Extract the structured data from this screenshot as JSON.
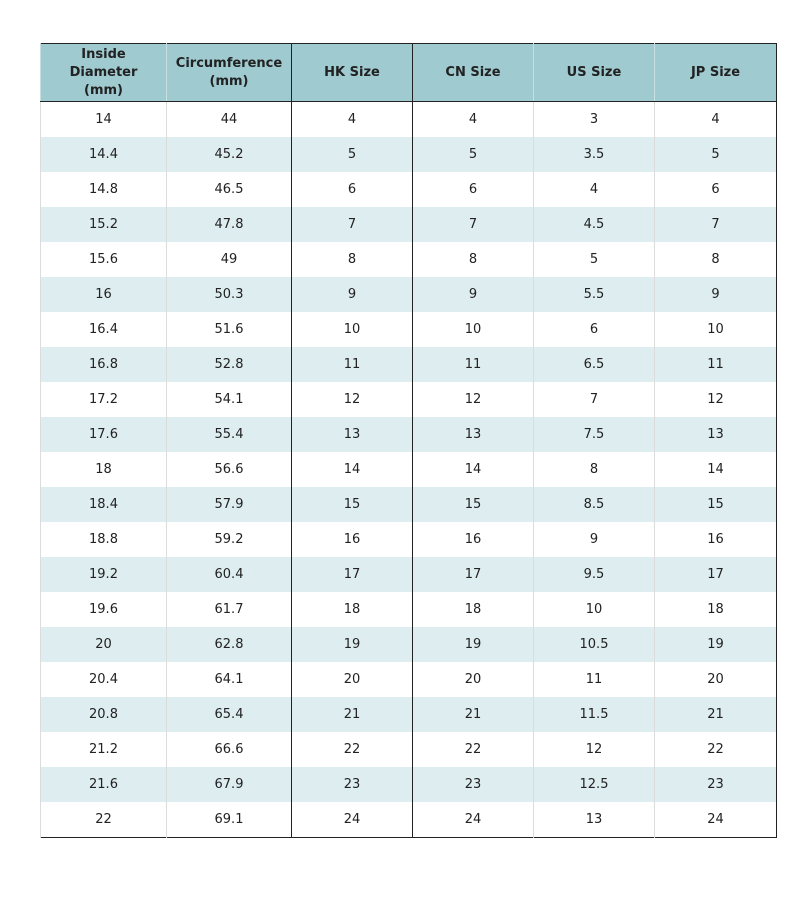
{
  "table": {
    "header": [
      "Inside Diameter (mm)",
      "Circumference (mm)",
      "HK Size",
      "CN Size",
      "US Size",
      "JP Size"
    ],
    "rows": [
      [
        "14",
        "44",
        "4",
        "4",
        "3",
        "4"
      ],
      [
        "14.4",
        "45.2",
        "5",
        "5",
        "3.5",
        "5"
      ],
      [
        "14.8",
        "46.5",
        "6",
        "6",
        "4",
        "6"
      ],
      [
        "15.2",
        "47.8",
        "7",
        "7",
        "4.5",
        "7"
      ],
      [
        "15.6",
        "49",
        "8",
        "8",
        "5",
        "8"
      ],
      [
        "16",
        "50.3",
        "9",
        "9",
        "5.5",
        "9"
      ],
      [
        "16.4",
        "51.6",
        "10",
        "10",
        "6",
        "10"
      ],
      [
        "16.8",
        "52.8",
        "11",
        "11",
        "6.5",
        "11"
      ],
      [
        "17.2",
        "54.1",
        "12",
        "12",
        "7",
        "12"
      ],
      [
        "17.6",
        "55.4",
        "13",
        "13",
        "7.5",
        "13"
      ],
      [
        "18",
        "56.6",
        "14",
        "14",
        "8",
        "14"
      ],
      [
        "18.4",
        "57.9",
        "15",
        "15",
        "8.5",
        "15"
      ],
      [
        "18.8",
        "59.2",
        "16",
        "16",
        "9",
        "16"
      ],
      [
        "19.2",
        "60.4",
        "17",
        "17",
        "9.5",
        "17"
      ],
      [
        "19.6",
        "61.7",
        "18",
        "18",
        "10",
        "18"
      ],
      [
        "20",
        "62.8",
        "19",
        "19",
        "10.5",
        "19"
      ],
      [
        "20.4",
        "64.1",
        "20",
        "20",
        "11",
        "20"
      ],
      [
        "20.8",
        "65.4",
        "21",
        "21",
        "11.5",
        "21"
      ],
      [
        "21.2",
        "66.6",
        "22",
        "22",
        "12",
        "22"
      ],
      [
        "21.6",
        "67.9",
        "23",
        "23",
        "12.5",
        "23"
      ],
      [
        "22",
        "69.1",
        "24",
        "24",
        "13",
        "24"
      ]
    ]
  }
}
